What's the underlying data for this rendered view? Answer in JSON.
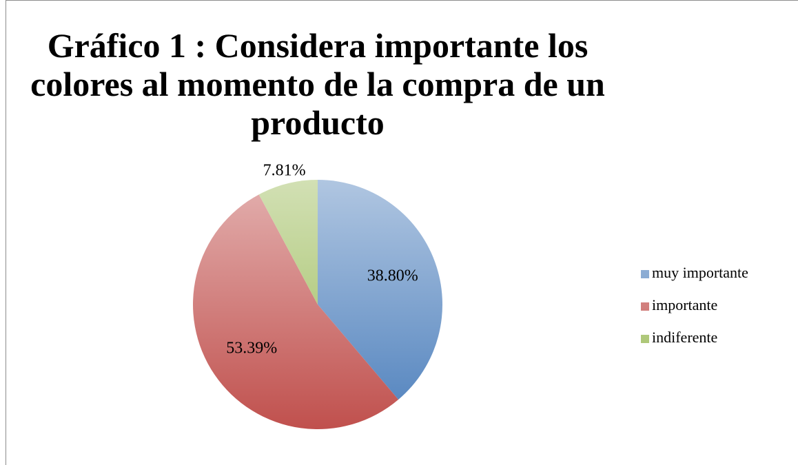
{
  "chart_data": {
    "type": "pie",
    "title": "Gráfico 1 : Considera importante los colores al momento de la compra de un producto",
    "categories": [
      "muy importante",
      "importante",
      "indiferente"
    ],
    "values": [
      38.8,
      53.39,
      7.81
    ],
    "value_labels": [
      "38.80%",
      "53.39%",
      "7.81%"
    ],
    "colors": [
      "#4f81bd",
      "#c0504d",
      "#9bbb59"
    ],
    "legend": "right"
  }
}
